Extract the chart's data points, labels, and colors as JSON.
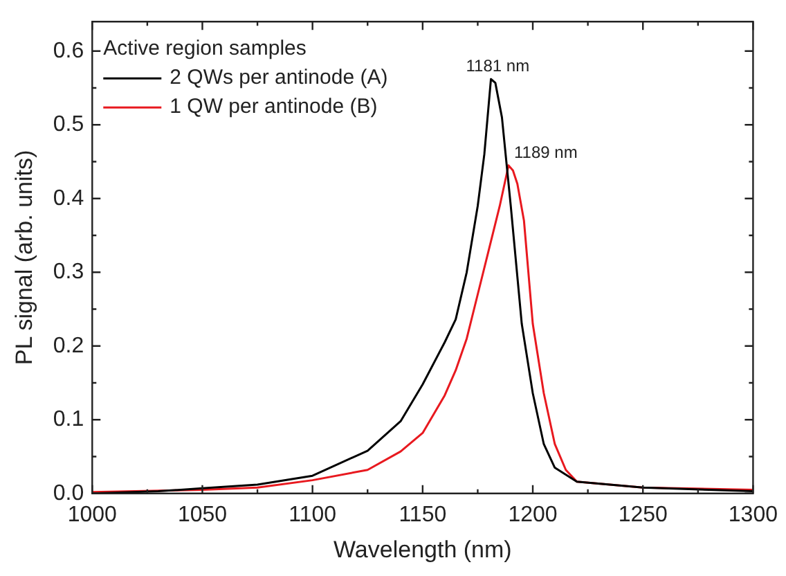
{
  "chart_data": {
    "type": "line",
    "xlabel": "Wavelength (nm)",
    "ylabel": "PL signal (arb. units)",
    "legend_title": "Active region samples",
    "legend": "top left",
    "grid": false,
    "marker": "none",
    "line_style": "solid",
    "xlim": [
      1000,
      1300
    ],
    "xticks": [
      1000,
      1050,
      1100,
      1150,
      1200,
      1250,
      1300
    ],
    "ylim": [
      0,
      0.64
    ],
    "yticks": [
      {
        "value": 0,
        "label": "0.0"
      },
      0.1,
      0.2,
      0.3,
      0.4,
      0.5,
      0.6
    ],
    "series": [
      {
        "name": "2 QWs per antinode (A)",
        "color": "#000000",
        "x": [
          1000,
          1030,
          1050,
          1075,
          1100,
          1125,
          1140,
          1150,
          1160,
          1165,
          1170,
          1175,
          1178,
          1181,
          1183,
          1186,
          1190,
          1195,
          1200,
          1205,
          1210,
          1220,
          1250,
          1280,
          1300
        ],
        "values": [
          0.0,
          0.003,
          0.007,
          0.012,
          0.024,
          0.058,
          0.098,
          0.148,
          0.205,
          0.236,
          0.3,
          0.39,
          0.46,
          0.562,
          0.557,
          0.51,
          0.39,
          0.23,
          0.136,
          0.067,
          0.035,
          0.016,
          0.008,
          0.005,
          0.003
        ]
      },
      {
        "name": "1 QW per antinode (B)",
        "color": "#e8191f",
        "x": [
          1000,
          1050,
          1075,
          1100,
          1125,
          1140,
          1150,
          1160,
          1165,
          1170,
          1175,
          1180,
          1185,
          1189,
          1191,
          1193,
          1196,
          1200,
          1205,
          1210,
          1215,
          1220,
          1250,
          1300
        ],
        "values": [
          0.002,
          0.005,
          0.008,
          0.018,
          0.032,
          0.057,
          0.082,
          0.133,
          0.167,
          0.21,
          0.27,
          0.33,
          0.39,
          0.445,
          0.438,
          0.42,
          0.37,
          0.23,
          0.136,
          0.067,
          0.032,
          0.016,
          0.008,
          0.005
        ]
      }
    ],
    "annotations": [
      {
        "text": "1181 nm",
        "x": 1181,
        "y": 0.562
      },
      {
        "text": "1189 nm",
        "x": 1189,
        "y": 0.445
      }
    ]
  }
}
